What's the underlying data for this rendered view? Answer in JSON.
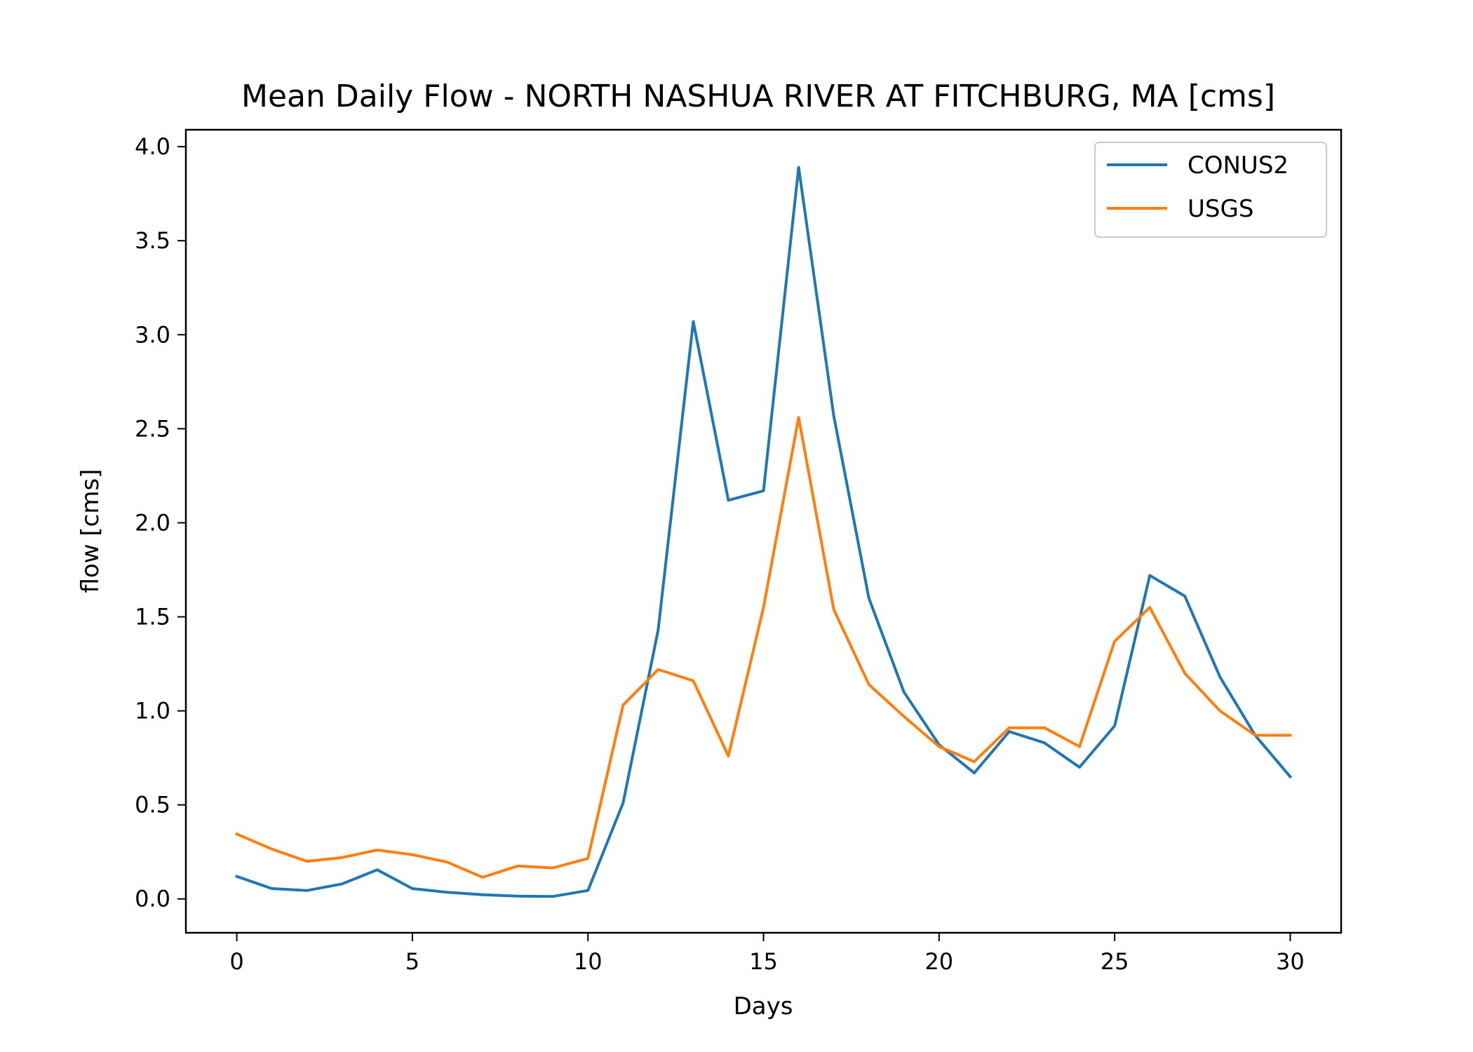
{
  "chart_data": {
    "type": "line",
    "title": "Mean Daily Flow - NORTH NASHUA RIVER AT FITCHBURG, MA [cms]",
    "xlabel": "Days",
    "ylabel": "flow [cms]",
    "xlim": [
      -1.45,
      31.45
    ],
    "ylim": [
      -0.18,
      4.09
    ],
    "xticks": [
      0,
      5,
      10,
      15,
      20,
      25,
      30
    ],
    "yticks": [
      0.0,
      0.5,
      1.0,
      1.5,
      2.0,
      2.5,
      3.0,
      3.5,
      4.0
    ],
    "ytick_labels": [
      "0.0",
      "0.5",
      "1.0",
      "1.5",
      "2.0",
      "2.5",
      "3.0",
      "3.5",
      "4.0"
    ],
    "grid": false,
    "legend_position": "top-right",
    "x": [
      0,
      1,
      2,
      3,
      4,
      5,
      6,
      7,
      8,
      9,
      10,
      11,
      12,
      13,
      14,
      15,
      16,
      17,
      18,
      19,
      20,
      21,
      22,
      23,
      24,
      25,
      26,
      27,
      28,
      29,
      30
    ],
    "series": [
      {
        "name": "CONUS2",
        "color": "#1f77b4",
        "values": [
          0.12,
          0.055,
          0.045,
          0.08,
          0.155,
          0.055,
          0.035,
          0.022,
          0.015,
          0.013,
          0.045,
          0.51,
          1.43,
          3.07,
          2.12,
          2.17,
          3.89,
          2.57,
          1.6,
          1.1,
          0.82,
          0.67,
          0.89,
          0.83,
          0.7,
          0.92,
          1.72,
          1.61,
          1.18,
          0.87,
          0.65
        ]
      },
      {
        "name": "USGS",
        "color": "#ff7f0e",
        "values": [
          0.345,
          0.265,
          0.2,
          0.22,
          0.26,
          0.235,
          0.195,
          0.115,
          0.175,
          0.165,
          0.215,
          1.03,
          1.22,
          1.16,
          0.76,
          1.55,
          2.56,
          1.54,
          1.14,
          0.97,
          0.81,
          0.73,
          0.91,
          0.91,
          0.81,
          1.37,
          1.55,
          1.2,
          1.0,
          0.87,
          0.87
        ]
      }
    ]
  }
}
